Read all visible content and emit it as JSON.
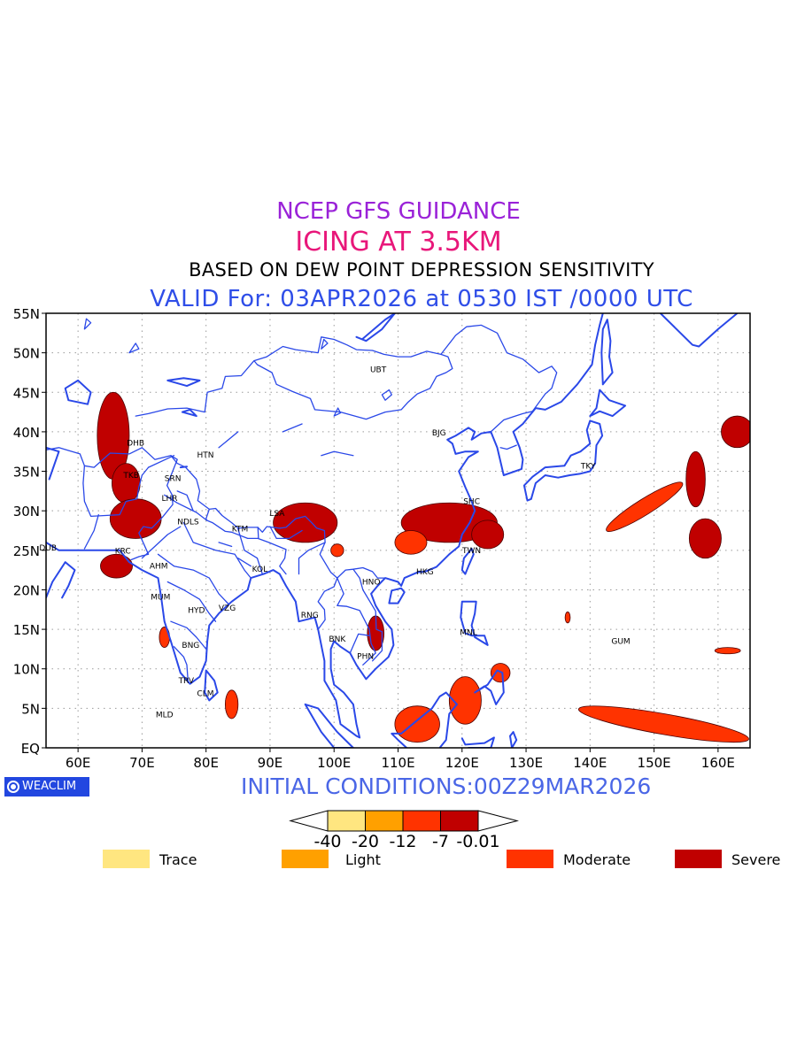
{
  "header": {
    "line1": "NCEP GFS GUIDANCE",
    "line2": "ICING AT 3.5KM",
    "line3": "BASED ON DEW POINT DEPRESSION SENSITIVITY",
    "line4": "VALID For: 03APR2026 at 0530 IST /0000 UTC",
    "line1_color": "#9a22d8",
    "line2_color": "#e8177a",
    "line3_color": "#000000",
    "line4_color": "#2f4ee8"
  },
  "map": {
    "lon_range": [
      55,
      165
    ],
    "lat_range": [
      0,
      55
    ],
    "lat_ticks": [
      "EQ",
      "5N",
      "10N",
      "15N",
      "20N",
      "25N",
      "30N",
      "35N",
      "40N",
      "45N",
      "50N",
      "55N"
    ],
    "lon_ticks": [
      "60E",
      "70E",
      "80E",
      "90E",
      "100E",
      "110E",
      "120E",
      "130E",
      "140E",
      "150E",
      "160E"
    ],
    "grid": true,
    "boundary_color": "#2a48e8",
    "stations": [
      {
        "code": "UBT",
        "lon": 106.9,
        "lat": 47.9
      },
      {
        "code": "BJG",
        "lon": 116.4,
        "lat": 39.9
      },
      {
        "code": "TKY",
        "lon": 139.7,
        "lat": 35.7
      },
      {
        "code": "DHB",
        "lon": 69.0,
        "lat": 38.6
      },
      {
        "code": "HTN",
        "lon": 79.9,
        "lat": 37.1
      },
      {
        "code": "TKB",
        "lon": 68.3,
        "lat": 34.5
      },
      {
        "code": "SRN",
        "lon": 74.8,
        "lat": 34.1
      },
      {
        "code": "LHR",
        "lon": 74.3,
        "lat": 31.6
      },
      {
        "code": "NDLS",
        "lon": 77.2,
        "lat": 28.6
      },
      {
        "code": "KTM",
        "lon": 85.3,
        "lat": 27.7
      },
      {
        "code": "LSA",
        "lon": 91.1,
        "lat": 29.7
      },
      {
        "code": "SHC",
        "lon": 121.5,
        "lat": 31.2
      },
      {
        "code": "TWN",
        "lon": 121.5,
        "lat": 25.0
      },
      {
        "code": "DUB",
        "lon": 55.3,
        "lat": 25.3
      },
      {
        "code": "KRC",
        "lon": 67.0,
        "lat": 24.9
      },
      {
        "code": "AHM",
        "lon": 72.6,
        "lat": 23.0
      },
      {
        "code": "HKG",
        "lon": 114.2,
        "lat": 22.3
      },
      {
        "code": "HNO",
        "lon": 105.8,
        "lat": 21.0
      },
      {
        "code": "KOL",
        "lon": 88.4,
        "lat": 22.6
      },
      {
        "code": "MUM",
        "lon": 72.9,
        "lat": 19.1
      },
      {
        "code": "HYD",
        "lon": 78.5,
        "lat": 17.4
      },
      {
        "code": "VZG",
        "lon": 83.3,
        "lat": 17.7
      },
      {
        "code": "RNG",
        "lon": 96.2,
        "lat": 16.8
      },
      {
        "code": "BNK",
        "lon": 100.5,
        "lat": 13.8
      },
      {
        "code": "MNL",
        "lon": 121.0,
        "lat": 14.6
      },
      {
        "code": "GUM",
        "lon": 144.8,
        "lat": 13.5
      },
      {
        "code": "PHN",
        "lon": 104.9,
        "lat": 11.6
      },
      {
        "code": "BNG",
        "lon": 77.6,
        "lat": 13.0
      },
      {
        "code": "TRV",
        "lon": 76.9,
        "lat": 8.5
      },
      {
        "code": "CLM",
        "lon": 79.9,
        "lat": 6.9
      },
      {
        "code": "MLD",
        "lon": 73.5,
        "lat": 4.2
      }
    ],
    "icing_areas": [
      {
        "level": "Severe",
        "lon": 65.5,
        "lat": 39.5,
        "rx": 2.5,
        "ry": 5.5
      },
      {
        "level": "Severe",
        "lon": 67.5,
        "lat": 33.5,
        "rx": 2.2,
        "ry": 2.5
      },
      {
        "level": "Severe",
        "lon": 69.0,
        "lat": 29.0,
        "rx": 4.0,
        "ry": 2.5
      },
      {
        "level": "Severe",
        "lon": 66.0,
        "lat": 23.0,
        "rx": 2.5,
        "ry": 1.5
      },
      {
        "level": "Severe",
        "lon": 95.5,
        "lat": 28.5,
        "rx": 5.0,
        "ry": 2.5
      },
      {
        "level": "Severe",
        "lon": 118.0,
        "lat": 28.5,
        "rx": 7.5,
        "ry": 2.5
      },
      {
        "level": "Severe",
        "lon": 124.0,
        "lat": 27.0,
        "rx": 2.5,
        "ry": 1.8
      },
      {
        "level": "Severe",
        "lon": 158.0,
        "lat": 26.5,
        "rx": 2.5,
        "ry": 2.5
      },
      {
        "level": "Severe",
        "lon": 156.5,
        "lat": 34.0,
        "rx": 1.5,
        "ry": 3.5
      },
      {
        "level": "Severe",
        "lon": 163.0,
        "lat": 40.0,
        "rx": 2.5,
        "ry": 2.0
      },
      {
        "level": "Severe",
        "lon": 106.5,
        "lat": 14.5,
        "rx": 1.3,
        "ry": 2.2
      },
      {
        "level": "Moderate",
        "lon": 148.5,
        "lat": 30.5,
        "rx": 7.0,
        "ry": 1.0,
        "angle": -32
      },
      {
        "level": "Moderate",
        "lon": 151.5,
        "lat": 3.0,
        "rx": 13.5,
        "ry": 1.3,
        "angle": 10
      },
      {
        "level": "Moderate",
        "lon": 113.0,
        "lat": 3.0,
        "rx": 3.5,
        "ry": 2.3
      },
      {
        "level": "Moderate",
        "lon": 120.5,
        "lat": 6.0,
        "rx": 2.5,
        "ry": 3.0
      },
      {
        "level": "Moderate",
        "lon": 126.0,
        "lat": 9.5,
        "rx": 1.5,
        "ry": 1.2
      },
      {
        "level": "Moderate",
        "lon": 84.0,
        "lat": 5.5,
        "rx": 1.0,
        "ry": 1.8
      },
      {
        "level": "Moderate",
        "lon": 73.5,
        "lat": 14.0,
        "rx": 0.8,
        "ry": 1.3
      },
      {
        "level": "Moderate",
        "lon": 112.0,
        "lat": 26.0,
        "rx": 2.5,
        "ry": 1.5
      },
      {
        "level": "Moderate",
        "lon": 100.5,
        "lat": 25.0,
        "rx": 1.0,
        "ry": 0.8
      },
      {
        "level": "Moderate",
        "lon": 161.5,
        "lat": 12.3,
        "rx": 2.0,
        "ry": 0.4
      },
      {
        "level": "Moderate",
        "lon": 136.5,
        "lat": 16.5,
        "rx": 0.4,
        "ry": 0.7
      }
    ]
  },
  "footer": {
    "logo_text": "WEACLIM",
    "initial_conditions": "INITIAL CONDITIONS:00Z29MAR2026",
    "initial_color": "#4a66e6"
  },
  "legend": {
    "scale_labels": [
      "-40",
      "-20",
      "-12",
      "-7",
      "-0.01"
    ],
    "colorbar_colors": [
      "#ffe680",
      "#ffa000",
      "#ff3300",
      "#c00000"
    ],
    "items": [
      {
        "label": "Trace",
        "color": "#ffe680"
      },
      {
        "label": "Light",
        "color": "#ffa000"
      },
      {
        "label": "Moderate",
        "color": "#ff3300"
      },
      {
        "label": "Severe",
        "color": "#c00000"
      }
    ]
  }
}
